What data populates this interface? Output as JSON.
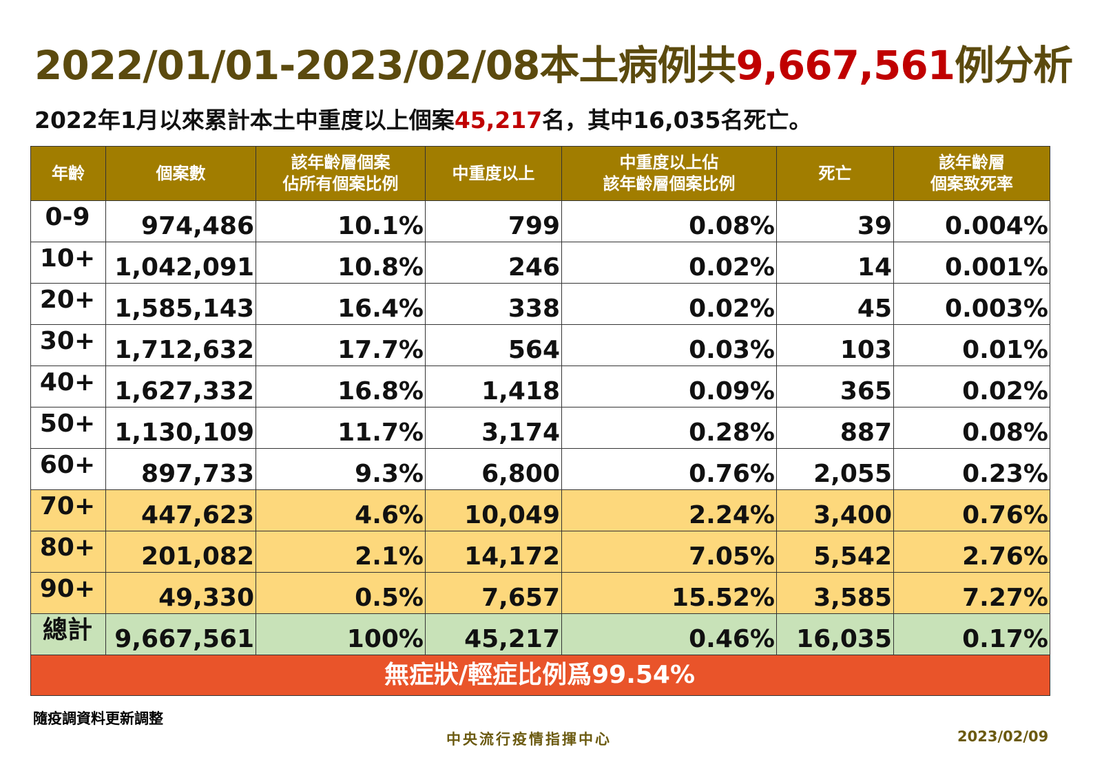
{
  "header": {
    "title": [
      "2022/01/01-2023/02/08本土病例共",
      "9,667,561",
      "例分析"
    ],
    "subtitle": [
      "2022年1月以來累計本土中重度以上個案",
      "45,217",
      "名，其中16,035名死亡。"
    ]
  },
  "table": {
    "columns": [
      [
        "年齡"
      ],
      [
        "個案數"
      ],
      [
        "該年齡層個案",
        "佔所有個案比例"
      ],
      [
        "中重度以上"
      ],
      [
        "中重度以上佔",
        "該年齡層個案比例"
      ],
      [
        "死亡"
      ],
      [
        "該年齡層",
        "個案致死率"
      ]
    ],
    "rows": [
      [
        "0-9",
        "974,486",
        "10.1%",
        "799",
        "0.08%",
        "39",
        "0.004%"
      ],
      [
        "10+",
        "1,042,091",
        "10.8%",
        "246",
        "0.02%",
        "14",
        "0.001%"
      ],
      [
        "20+",
        "1,585,143",
        "16.4%",
        "338",
        "0.02%",
        "45",
        "0.003%"
      ],
      [
        "30+",
        "1,712,632",
        "17.7%",
        "564",
        "0.03%",
        "103",
        "0.01%"
      ],
      [
        "40+",
        "1,627,332",
        "16.8%",
        "1,418",
        "0.09%",
        "365",
        "0.02%"
      ],
      [
        "50+",
        "1,130,109",
        "11.7%",
        "3,174",
        "0.28%",
        "887",
        "0.08%"
      ],
      [
        "60+",
        "897,733",
        "9.3%",
        "6,800",
        "0.76%",
        "2,055",
        "0.23%"
      ],
      [
        "70+",
        "447,623",
        "4.6%",
        "10,049",
        "2.24%",
        "3,400",
        "0.76%"
      ],
      [
        "80+",
        "201,082",
        "2.1%",
        "14,172",
        "7.05%",
        "5,542",
        "2.76%"
      ],
      [
        "90+",
        "49,330",
        "0.5%",
        "7,657",
        "15.52%",
        "3,585",
        "7.27%"
      ],
      [
        "總計",
        "9,667,561",
        "100%",
        "45,217",
        "0.46%",
        "16,035",
        "0.17%"
      ]
    ],
    "banner": "無症狀/輕症比例爲99.54%"
  },
  "footer": {
    "note": "隨疫調資料更新調整",
    "organization": "中央流行疫情指揮中心",
    "date": "2023/02/09"
  }
}
